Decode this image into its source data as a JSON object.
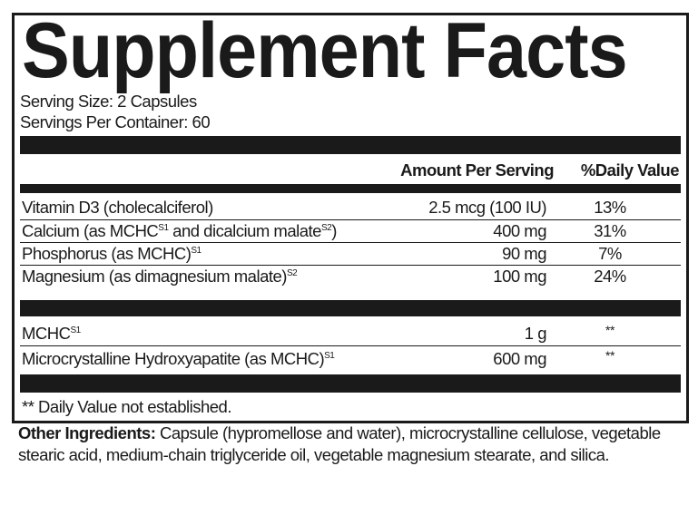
{
  "title": "Supplement Facts",
  "serving_size": "Serving Size: 2 Capsules",
  "servings_per_container": "Servings Per Container: 60",
  "columns": {
    "amount": "Amount Per Serving",
    "daily_value": "%Daily Value"
  },
  "nutrients": [
    {
      "name": "Vitamin D3 (cholecalciferol)",
      "sup": "",
      "name_after": "",
      "amount": "2.5 mcg (100 IU)",
      "dv": "13%"
    },
    {
      "name": "Calcium (as MCHC",
      "sup": "S1",
      "name_after": " and dicalcium malate",
      "sup2": "S2",
      "tail": ")",
      "amount": "400 mg",
      "dv": "31%"
    },
    {
      "name": "Phosphorus (as MCHC)",
      "sup": "S1",
      "amount": "90 mg",
      "dv": "7%"
    },
    {
      "name": "Magnesium (as dimagnesium malate)",
      "sup": "S2",
      "amount": "100 mg",
      "dv": "24%"
    }
  ],
  "other_nutrients": [
    {
      "name": "MCHC",
      "sup": "S1",
      "amount": "1 g",
      "dv": "**"
    },
    {
      "name": "Microcrystalline Hydroxyapatite (as MCHC)",
      "sup": "S1",
      "amount": "600 mg",
      "dv": "**"
    }
  ],
  "footnote": "** Daily Value not established.",
  "other_ingredients": {
    "label": "Other Ingredients:",
    "text": " Capsule (hypromellose and water), microcrystalline cellulose, vegetable stearic acid, medium-chain triglyceride oil, vegetable magnesium stearate, and silica."
  }
}
